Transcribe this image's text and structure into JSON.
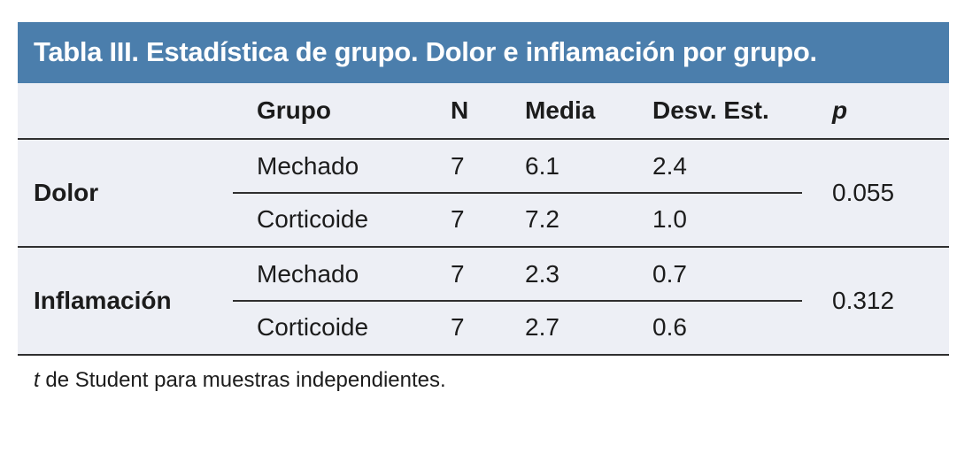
{
  "title": "Tabla III. Estadística de grupo. Dolor e inflamación por grupo.",
  "columns": [
    "Grupo",
    "N",
    "Media",
    "Desv. Est.",
    "p"
  ],
  "sections": [
    {
      "label": "Dolor",
      "p": "0.055",
      "rows": [
        {
          "grupo": "Mechado",
          "n": "7",
          "media": "6.1",
          "desv": "2.4"
        },
        {
          "grupo": "Corticoide",
          "n": "7",
          "media": "7.2",
          "desv": "1.0"
        }
      ]
    },
    {
      "label": "Inflamación",
      "p": "0.312",
      "rows": [
        {
          "grupo": "Mechado",
          "n": "7",
          "media": "2.3",
          "desv": "0.7"
        },
        {
          "grupo": "Corticoide",
          "n": "7",
          "media": "2.7",
          "desv": "0.6"
        }
      ]
    }
  ],
  "footnote": {
    "t": "t",
    "rest": " de Student para muestras independientes."
  },
  "colors": {
    "header_bg": "#4b7eac",
    "body_bg": "#edeff5",
    "text": "#1c1c1c",
    "line": "#2f2f2f"
  }
}
